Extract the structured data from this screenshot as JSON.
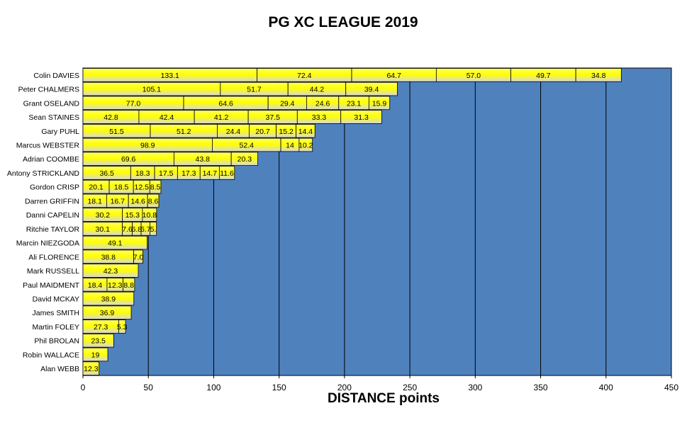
{
  "chart_data": {
    "type": "bar",
    "orientation": "horizontal",
    "stacked": true,
    "title": "PG XC LEAGUE 2019",
    "xlabel": "DISTANCE points",
    "ylabel": "",
    "xlim": [
      0,
      450
    ],
    "xticks": [
      0,
      50,
      100,
      150,
      200,
      250,
      300,
      350,
      400,
      450
    ],
    "grid": "vertical",
    "legend": "none",
    "plot_bg_color": "#4f81bd",
    "bar_gradient": [
      "#ffff66",
      "#ffff00",
      "#d8d8d8"
    ],
    "rows": [
      {
        "name": "Colin DAVIES",
        "values": [
          133.1,
          72.4,
          64.7,
          57.0,
          49.7,
          34.8
        ],
        "labels": [
          "133.1",
          "72.4",
          "64.7",
          "57.0",
          "49.7",
          "34.8"
        ]
      },
      {
        "name": "Peter CHALMERS",
        "values": [
          105.1,
          51.7,
          44.2,
          39.4
        ],
        "labels": [
          "105.1",
          "51.7",
          "44.2",
          "39.4"
        ]
      },
      {
        "name": "Grant OSELAND",
        "values": [
          77.0,
          64.6,
          29.4,
          24.6,
          23.1,
          15.9
        ],
        "labels": [
          "77.0",
          "64.6",
          "29.4",
          "24.6",
          "23.1",
          "15.9"
        ]
      },
      {
        "name": "Sean STAINES",
        "values": [
          42.8,
          42.4,
          41.2,
          37.5,
          33.3,
          31.3
        ],
        "labels": [
          "42.8",
          "42.4",
          "41.2",
          "37.5",
          "33.3",
          "31.3"
        ]
      },
      {
        "name": "Gary PUHL",
        "values": [
          51.5,
          51.2,
          24.4,
          20.7,
          15.2,
          14.4
        ],
        "labels": [
          "51.5",
          "51.2",
          "24.4",
          "20.7",
          "15.2",
          "14.4"
        ]
      },
      {
        "name": "Marcus WEBSTER",
        "values": [
          98.9,
          52.4,
          14,
          10.2
        ],
        "labels": [
          "98.9",
          "52.4",
          "14",
          "10.2"
        ]
      },
      {
        "name": "Adrian COOMBE",
        "values": [
          69.6,
          43.8,
          20.3
        ],
        "labels": [
          "69.6",
          "43.8",
          "20.3"
        ]
      },
      {
        "name": "Antony STRICKLAND",
        "values": [
          36.5,
          18.3,
          17.5,
          17.3,
          14.7,
          11.6
        ],
        "labels": [
          "36.5",
          "18.3",
          "17.5",
          "17.3",
          "14.7",
          "11.6"
        ]
      },
      {
        "name": "Gordon CRISP",
        "values": [
          20.1,
          18.5,
          12.5,
          8.5
        ],
        "labels": [
          "20.1",
          "18.5",
          "12.5",
          "8.5"
        ]
      },
      {
        "name": "Darren GRIFFIN",
        "values": [
          18.1,
          16.7,
          14.6,
          8.6
        ],
        "labels": [
          "18.1",
          "16.7",
          "14.6",
          "8.6"
        ]
      },
      {
        "name": "Danni CAPELIN",
        "values": [
          30.2,
          15.3,
          10.8
        ],
        "labels": [
          "30.2",
          "15.3",
          "10.8"
        ]
      },
      {
        "name": "Ritchie TAYLOR",
        "values": [
          30.1,
          7.6,
          6.8,
          6.7,
          5.0
        ],
        "labels": [
          "30.1",
          "7.6",
          "6.8",
          "6.7",
          "5."
        ]
      },
      {
        "name": "Marcin NIEZGODA",
        "values": [
          49.1
        ],
        "labels": [
          "49.1"
        ]
      },
      {
        "name": "Ali FLORENCE",
        "values": [
          38.8,
          7.0
        ],
        "labels": [
          "38.8",
          "7.0"
        ]
      },
      {
        "name": "Mark RUSSELL",
        "values": [
          42.3
        ],
        "labels": [
          "42.3"
        ]
      },
      {
        "name": "Paul MAIDMENT",
        "values": [
          18.4,
          12.3,
          8.8
        ],
        "labels": [
          "18.4",
          "12.3",
          "8.8"
        ]
      },
      {
        "name": "David MCKAY",
        "values": [
          38.9
        ],
        "labels": [
          "38.9"
        ]
      },
      {
        "name": "James SMITH",
        "values": [
          36.9
        ],
        "labels": [
          "36.9"
        ]
      },
      {
        "name": "Martin FOLEY",
        "values": [
          27.3,
          5.3
        ],
        "labels": [
          "27.3",
          "5.3"
        ]
      },
      {
        "name": "Phil BROLAN",
        "values": [
          23.5
        ],
        "labels": [
          "23.5"
        ]
      },
      {
        "name": "Robin WALLACE",
        "values": [
          19
        ],
        "labels": [
          "19"
        ]
      },
      {
        "name": "Alan WEBB",
        "values": [
          12.3
        ],
        "labels": [
          "12.3"
        ]
      }
    ]
  }
}
